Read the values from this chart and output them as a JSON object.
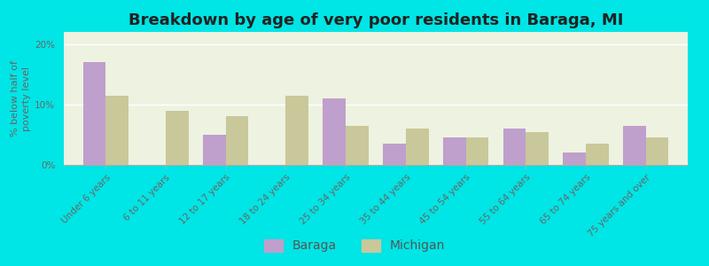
{
  "title": "Breakdown by age of very poor residents in Baraga, MI",
  "ylabel": "% below half of\npoverty level",
  "categories": [
    "Under 6 years",
    "6 to 11 years",
    "12 to 17 years",
    "18 to 24 years",
    "25 to 34 years",
    "35 to 44 years",
    "45 to 54 years",
    "55 to 64 years",
    "65 to 74 years",
    "75 years and over"
  ],
  "baraga_values": [
    17.0,
    0.0,
    5.0,
    0.0,
    11.0,
    3.5,
    4.5,
    6.0,
    2.0,
    6.5
  ],
  "michigan_values": [
    11.5,
    9.0,
    8.0,
    11.5,
    6.5,
    6.0,
    4.5,
    5.5,
    3.5,
    4.5
  ],
  "baraga_color": "#bf9fcc",
  "michigan_color": "#c8c89a",
  "background_color": "#00e5e5",
  "plot_bg_color": "#eef2e0",
  "ylim": [
    0,
    22
  ],
  "yticks": [
    0,
    10,
    20
  ],
  "ytick_labels": [
    "0%",
    "10%",
    "20%"
  ],
  "bar_width": 0.38,
  "title_fontsize": 13,
  "legend_fontsize": 10,
  "axis_label_fontsize": 8,
  "tick_fontsize": 7.5
}
